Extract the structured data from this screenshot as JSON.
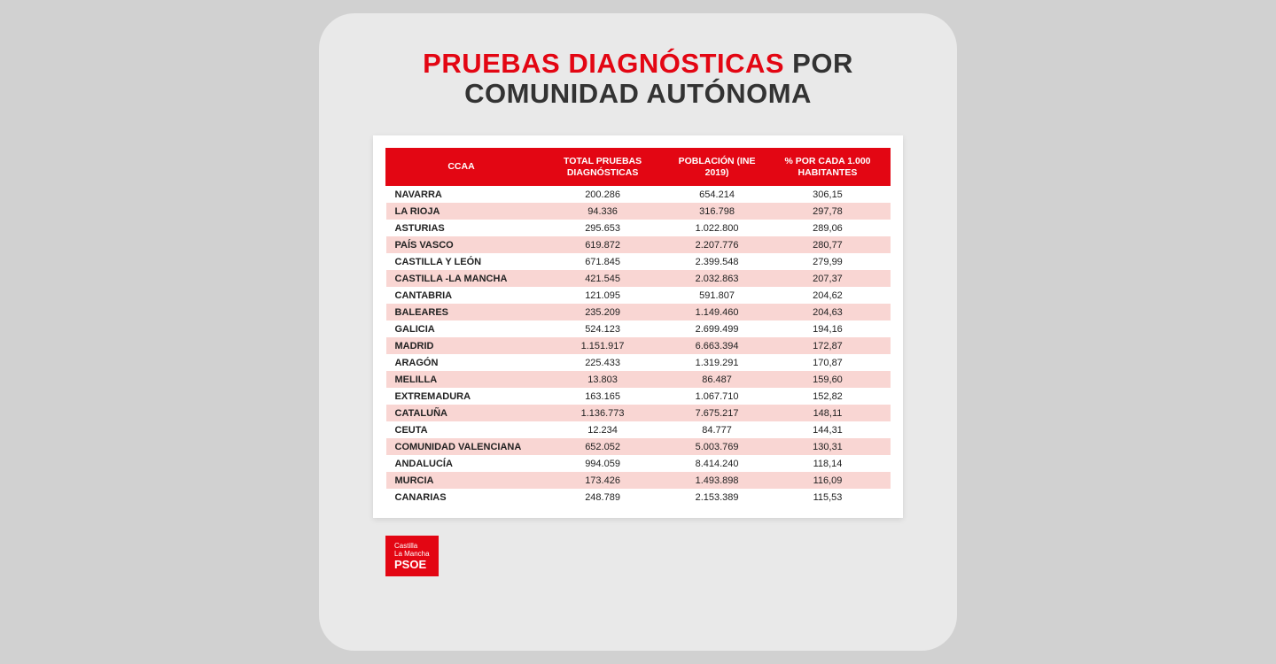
{
  "title": {
    "part1": "PRUEBAS DIAGNÓSTICAS",
    "part2": "POR",
    "part3": "COMUNIDAD AUTÓNOMA"
  },
  "colors": {
    "brand_red": "#e30613",
    "card_bg": "#e9e9e9",
    "page_bg": "#d1d1d1",
    "row_alt": "#f9d6d3",
    "text_dark": "#333333"
  },
  "table": {
    "columns": [
      "CCAA",
      "TOTAL PRUEBAS DIAGNÓSTICAS",
      "POBLACIÓN (INE 2019)",
      "% POR CADA 1.000 HABITANTES"
    ],
    "rows": [
      {
        "ccaa": "NAVARRA",
        "total": "200.286",
        "pob": "654.214",
        "pct": "306,15"
      },
      {
        "ccaa": "LA RIOJA",
        "total": "94.336",
        "pob": "316.798",
        "pct": "297,78"
      },
      {
        "ccaa": "ASTURIAS",
        "total": "295.653",
        "pob": "1.022.800",
        "pct": "289,06"
      },
      {
        "ccaa": "PAÍS VASCO",
        "total": "619.872",
        "pob": "2.207.776",
        "pct": "280,77"
      },
      {
        "ccaa": "CASTILLA Y LEÓN",
        "total": "671.845",
        "pob": "2.399.548",
        "pct": "279,99"
      },
      {
        "ccaa": "CASTILLA -LA MANCHA",
        "total": "421.545",
        "pob": "2.032.863",
        "pct": "207,37"
      },
      {
        "ccaa": "CANTABRIA",
        "total": "121.095",
        "pob": "591.807",
        "pct": "204,62"
      },
      {
        "ccaa": "BALEARES",
        "total": "235.209",
        "pob": "1.149.460",
        "pct": "204,63"
      },
      {
        "ccaa": "GALICIA",
        "total": "524.123",
        "pob": "2.699.499",
        "pct": "194,16"
      },
      {
        "ccaa": "MADRID",
        "total": "1.151.917",
        "pob": "6.663.394",
        "pct": "172,87"
      },
      {
        "ccaa": "ARAGÓN",
        "total": "225.433",
        "pob": "1.319.291",
        "pct": "170,87"
      },
      {
        "ccaa": "MELILLA",
        "total": "13.803",
        "pob": "86.487",
        "pct": "159,60"
      },
      {
        "ccaa": "EXTREMADURA",
        "total": "163.165",
        "pob": "1.067.710",
        "pct": "152,82"
      },
      {
        "ccaa": "CATALUÑA",
        "total": "1.136.773",
        "pob": "7.675.217",
        "pct": "148,11"
      },
      {
        "ccaa": "CEUTA",
        "total": "12.234",
        "pob": "84.777",
        "pct": "144,31"
      },
      {
        "ccaa": "COMUNIDAD VALENCIANA",
        "total": "652.052",
        "pob": "5.003.769",
        "pct": "130,31"
      },
      {
        "ccaa": "ANDALUCÍA",
        "total": "994.059",
        "pob": "8.414.240",
        "pct": "118,14"
      },
      {
        "ccaa": "MURCIA",
        "total": "173.426",
        "pob": "1.493.898",
        "pct": "116,09"
      },
      {
        "ccaa": "CANARIAS",
        "total": "248.789",
        "pob": "2.153.389",
        "pct": "115,53"
      }
    ]
  },
  "logo": {
    "line1": "Castilla",
    "line2": "La Mancha",
    "line3": "PSOE"
  }
}
